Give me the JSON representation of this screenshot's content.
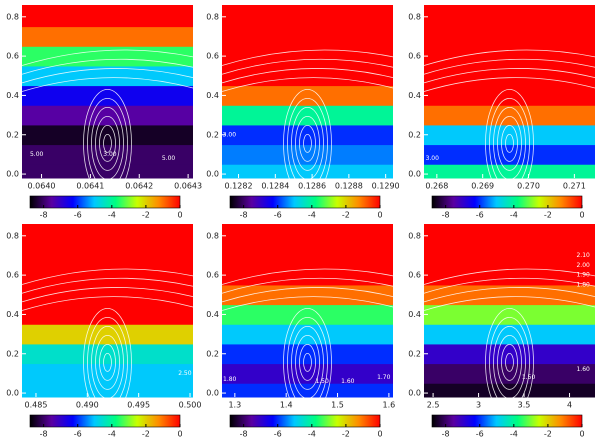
{
  "chart_data": [
    {
      "type": "heatmap",
      "xlim": [
        0.06396,
        0.06431
      ],
      "xticks": [
        {
          "value": 0.064,
          "label": "0.0640"
        },
        {
          "value": 0.0641,
          "label": "0.0641"
        },
        {
          "value": 0.0642,
          "label": "0.0642"
        },
        {
          "value": 0.0643,
          "label": "0.0643"
        }
      ],
      "ylim": [
        -0.02,
        0.86
      ],
      "yticks": [
        {
          "value": 0,
          "label": "0.0"
        },
        {
          "value": 0.2,
          "label": "0.2"
        },
        {
          "value": 0.4,
          "label": "0.4"
        },
        {
          "value": 0.6,
          "label": "0.6"
        },
        {
          "value": 0.8,
          "label": "0.8"
        }
      ],
      "profile_y": [
        0,
        0.1,
        0.2,
        0.3,
        0.4,
        0.5,
        0.6,
        0.7,
        0.8
      ],
      "z": [
        -8,
        -8,
        -8.5,
        -7.5,
        -6.5,
        -5,
        -3.5,
        -1,
        0
      ],
      "colorbar": {
        "lim": [
          -8.8,
          0
        ],
        "ticks": [
          -8,
          -6,
          -4,
          -2,
          0
        ]
      },
      "colormap": [
        "#000000",
        "#5a00a0",
        "#0000ff",
        "#00c8ff",
        "#00ff80",
        "#c8ff00",
        "#ff8c00",
        "#ff0000"
      ],
      "annotations": [
        {
          "text": "5.00",
          "x": 0.06399,
          "y": 0.1
        },
        {
          "text": "3.00",
          "x": 0.06414,
          "y": 0.1
        },
        {
          "text": "5.00",
          "x": 0.06426,
          "y": 0.08
        }
      ]
    },
    {
      "type": "heatmap",
      "xlim": [
        0.12811,
        0.12904
      ],
      "xticks": [
        {
          "value": 0.1282,
          "label": "0.1282"
        },
        {
          "value": 0.1284,
          "label": "0.1284"
        },
        {
          "value": 0.1286,
          "label": "0.1286"
        },
        {
          "value": 0.1288,
          "label": "0.1288"
        },
        {
          "value": 0.129,
          "label": "0.1290"
        }
      ],
      "ylim": [
        -0.02,
        0.86
      ],
      "yticks": [
        {
          "value": 0,
          "label": "0.0"
        },
        {
          "value": 0.2,
          "label": "0.2"
        },
        {
          "value": 0.4,
          "label": "0.4"
        },
        {
          "value": 0.6,
          "label": "0.6"
        },
        {
          "value": 0.8,
          "label": "0.8"
        }
      ],
      "profile_y": [
        0,
        0.1,
        0.2,
        0.3,
        0.4,
        0.5,
        0.6,
        0.7,
        0.8
      ],
      "z": [
        -5,
        -5.5,
        -6,
        -4,
        -1,
        0,
        0,
        0,
        0
      ],
      "colorbar": {
        "lim": [
          -8.8,
          0
        ],
        "ticks": [
          -8,
          -6,
          -4,
          -2,
          0
        ]
      },
      "colormap": [
        "#000000",
        "#5a00a0",
        "#0000ff",
        "#00c8ff",
        "#00ff80",
        "#c8ff00",
        "#ff8c00",
        "#ff0000"
      ],
      "annotations": [
        {
          "text": "3.00",
          "x": 0.12815,
          "y": 0.2
        }
      ]
    },
    {
      "type": "heatmap",
      "xlim": [
        0.26772,
        0.27145
      ],
      "xticks": [
        {
          "value": 0.268,
          "label": "0.268"
        },
        {
          "value": 0.269,
          "label": "0.269"
        },
        {
          "value": 0.27,
          "label": "0.270"
        },
        {
          "value": 0.271,
          "label": "0.271"
        }
      ],
      "ylim": [
        -0.02,
        0.86
      ],
      "yticks": [
        {
          "value": 0,
          "label": "0.0"
        },
        {
          "value": 0.2,
          "label": "0.2"
        },
        {
          "value": 0.4,
          "label": "0.4"
        },
        {
          "value": 0.6,
          "label": "0.6"
        },
        {
          "value": 0.8,
          "label": "0.8"
        }
      ],
      "profile_y": [
        0,
        0.1,
        0.2,
        0.3,
        0.4,
        0.5,
        0.6,
        0.7,
        0.8
      ],
      "z": [
        -4,
        -6,
        -5,
        -1,
        0,
        0,
        0,
        0,
        0
      ],
      "colorbar": {
        "lim": [
          -8.8,
          0
        ],
        "ticks": [
          -8,
          -6,
          -4,
          -2,
          0
        ]
      },
      "colormap": [
        "#000000",
        "#5a00a0",
        "#0000ff",
        "#00c8ff",
        "#00ff80",
        "#c8ff00",
        "#ff8c00",
        "#ff0000"
      ],
      "annotations": [
        {
          "text": "3.00",
          "x": 0.2679,
          "y": 0.08
        }
      ]
    },
    {
      "type": "heatmap",
      "xlim": [
        0.48364,
        0.50029
      ],
      "xticks": [
        {
          "value": 0.485,
          "label": "0.485"
        },
        {
          "value": 0.49,
          "label": "0.490"
        },
        {
          "value": 0.495,
          "label": "0.495"
        },
        {
          "value": 0.5,
          "label": "0.500"
        }
      ],
      "ylim": [
        -0.02,
        0.86
      ],
      "yticks": [
        {
          "value": 0,
          "label": "0.0"
        },
        {
          "value": 0.2,
          "label": "0.2"
        },
        {
          "value": 0.4,
          "label": "0.4"
        },
        {
          "value": 0.6,
          "label": "0.6"
        },
        {
          "value": 0.8,
          "label": "0.8"
        }
      ],
      "profile_y": [
        0,
        0.1,
        0.2,
        0.3,
        0.4,
        0.5,
        0.6,
        0.7,
        0.8
      ],
      "z": [
        -5,
        -5,
        -4.5,
        -2,
        0,
        0,
        0,
        0,
        0
      ],
      "colorbar": {
        "lim": [
          -8.8,
          0
        ],
        "ticks": [
          -8,
          -6,
          -4,
          -2,
          0
        ]
      },
      "colormap": [
        "#000000",
        "#5a00a0",
        "#0000ff",
        "#00c8ff",
        "#00ff80",
        "#c8ff00",
        "#ff8c00",
        "#ff0000"
      ],
      "annotations": [
        {
          "text": "2.50",
          "x": 0.4995,
          "y": 0.1
        }
      ]
    },
    {
      "type": "heatmap",
      "xlim": [
        1.275,
        1.608
      ],
      "xticks": [
        1.3,
        1.4,
        1.5,
        1.6
      ],
      "ylim": [
        -0.02,
        0.86
      ],
      "yticks": [
        {
          "value": 0,
          "label": "0.0"
        },
        {
          "value": 0.2,
          "label": "0.2"
        },
        {
          "value": 0.4,
          "label": "0.4"
        },
        {
          "value": 0.6,
          "label": "0.6"
        },
        {
          "value": 0.8,
          "label": "0.8"
        }
      ],
      "profile_y": [
        0,
        0.1,
        0.2,
        0.3,
        0.4,
        0.5,
        0.6,
        0.7,
        0.8
      ],
      "z": [
        -6,
        -7,
        -6,
        -5,
        -3.5,
        -1,
        0,
        0,
        0
      ],
      "colorbar": {
        "lim": [
          -8.8,
          0
        ],
        "ticks": [
          -8,
          -6,
          -4,
          -2,
          0
        ]
      },
      "colormap": [
        "#000000",
        "#5a00a0",
        "#0000ff",
        "#00c8ff",
        "#00ff80",
        "#c8ff00",
        "#ff8c00",
        "#ff0000"
      ],
      "annotations": [
        {
          "text": "1.80",
          "x": 1.29,
          "y": 0.07
        },
        {
          "text": "1.50",
          "x": 1.47,
          "y": 0.06
        },
        {
          "text": "1.60",
          "x": 1.52,
          "y": 0.06
        },
        {
          "text": "1.70",
          "x": 1.59,
          "y": 0.08
        }
      ]
    },
    {
      "type": "heatmap",
      "xlim": [
        2.4,
        4.28
      ],
      "xticks": [
        2.5,
        3,
        3.5,
        4
      ],
      "ylim": [
        -0.02,
        0.86
      ],
      "yticks": [
        {
          "value": 0,
          "label": "0.0"
        },
        {
          "value": 0.2,
          "label": "0.2"
        },
        {
          "value": 0.4,
          "label": "0.4"
        },
        {
          "value": 0.6,
          "label": "0.6"
        },
        {
          "value": 0.8,
          "label": "0.8"
        }
      ],
      "profile_y": [
        0,
        0.1,
        0.2,
        0.3,
        0.4,
        0.5,
        0.6,
        0.7,
        0.8
      ],
      "z": [
        -8.5,
        -8,
        -7,
        -5,
        -3,
        -1,
        0,
        0,
        0
      ],
      "colorbar": {
        "lim": [
          -8.8,
          0
        ],
        "ticks": [
          -8,
          -6,
          -4,
          -2,
          0
        ]
      },
      "colormap": [
        "#000000",
        "#5a00a0",
        "#0000ff",
        "#00c8ff",
        "#00ff80",
        "#c8ff00",
        "#ff8c00",
        "#ff0000"
      ],
      "annotations": [
        {
          "text": "2.10",
          "x": 4.15,
          "y": 0.7
        },
        {
          "text": "2.00",
          "x": 4.15,
          "y": 0.65
        },
        {
          "text": "1.90",
          "x": 4.15,
          "y": 0.6
        },
        {
          "text": "1.80",
          "x": 4.15,
          "y": 0.55
        },
        {
          "text": "1.60",
          "x": 4.15,
          "y": 0.12
        },
        {
          "text": "1.50",
          "x": 3.55,
          "y": 0.08
        }
      ]
    }
  ]
}
